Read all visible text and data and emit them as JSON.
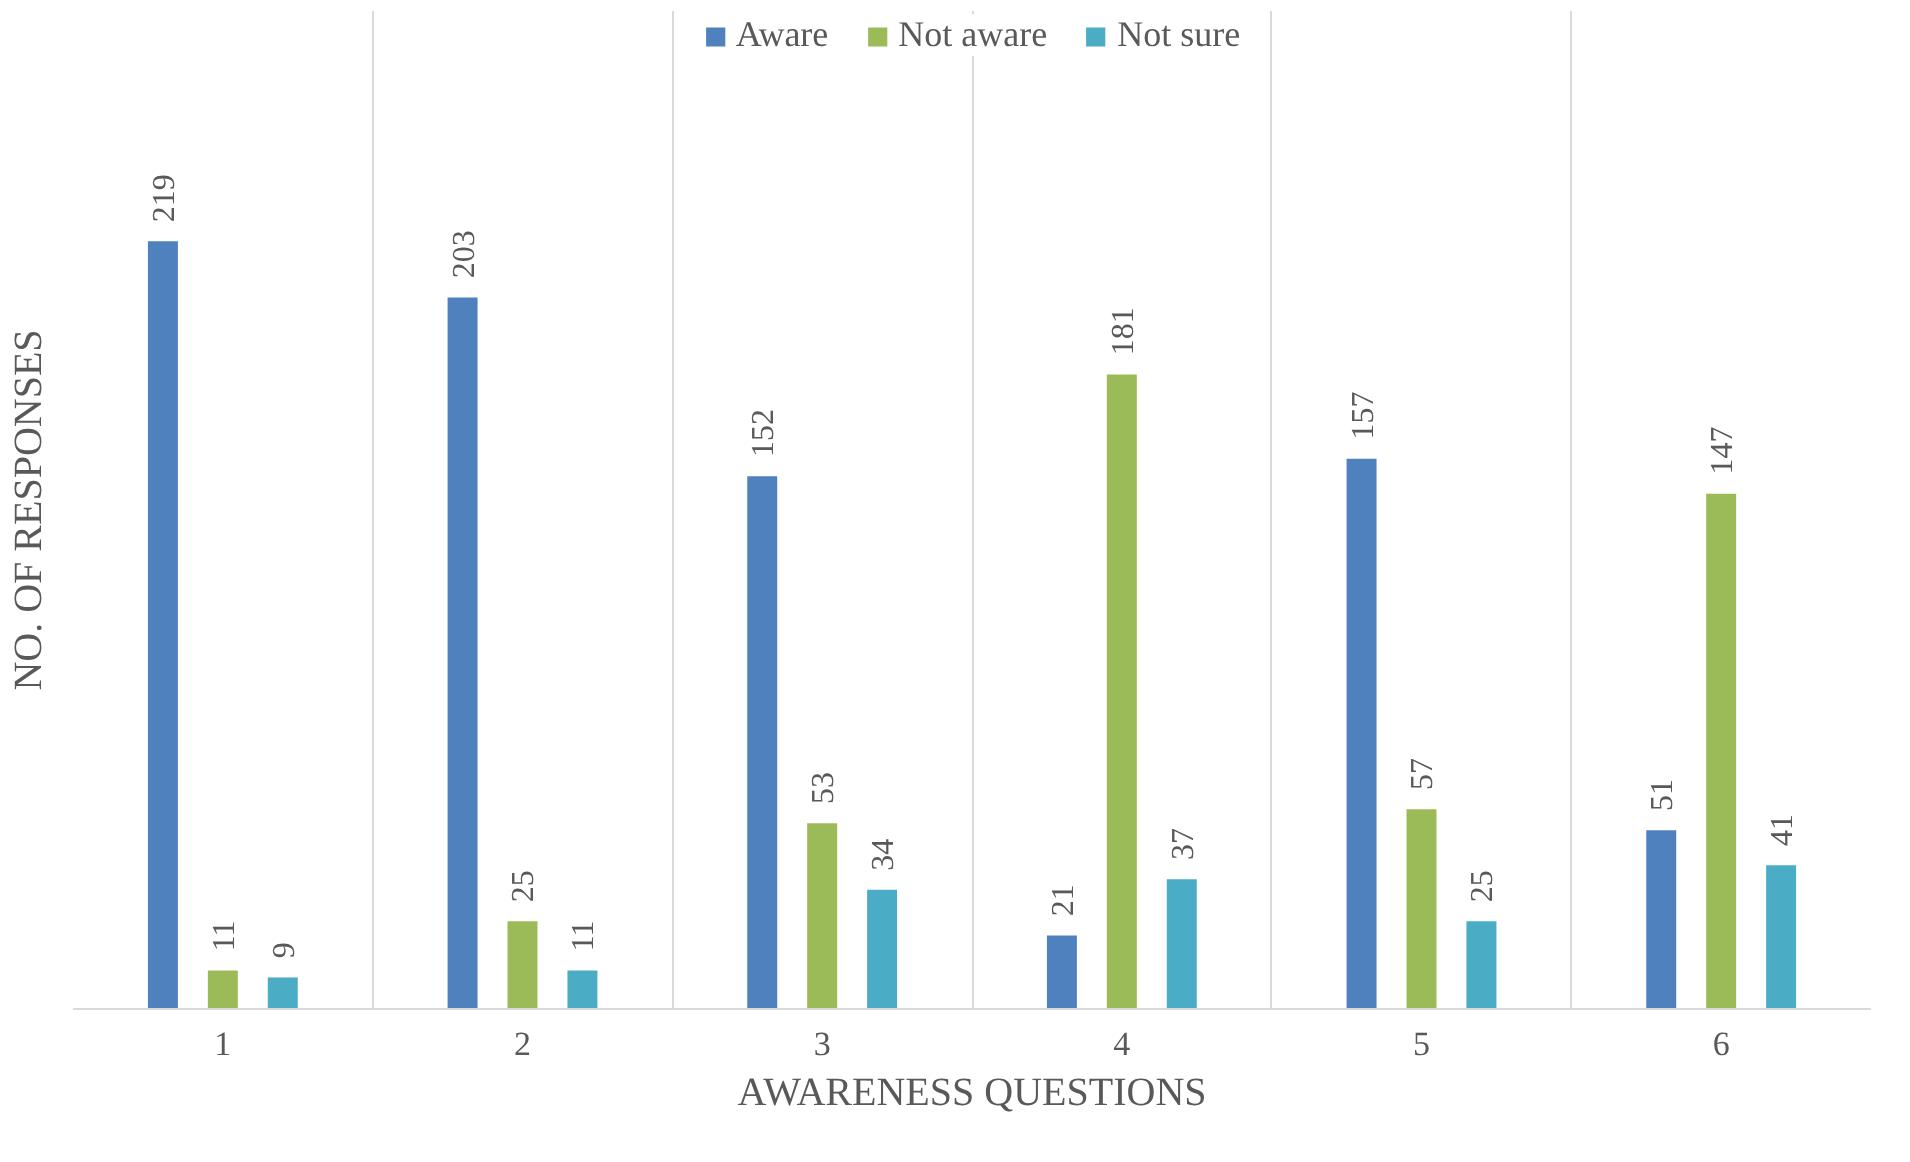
{
  "chart_data": {
    "type": "bar",
    "xlabel": "AWARENESS QUESTIONS",
    "ylabel": "NO. OF RESPONSES",
    "categories": [
      "1",
      "2",
      "3",
      "4",
      "5",
      "6"
    ],
    "series": [
      {
        "name": "Aware",
        "color": "#4e81bd",
        "values": [
          219,
          203,
          152,
          21,
          157,
          51
        ]
      },
      {
        "name": "Not aware",
        "color": "#9bbb59",
        "values": [
          11,
          25,
          53,
          181,
          57,
          147
        ]
      },
      {
        "name": "Not sure",
        "color": "#4bacc6",
        "values": [
          9,
          11,
          34,
          37,
          25,
          41
        ]
      }
    ],
    "tick_labels": "x",
    "data_labels": true,
    "legend": "top",
    "grid": "x"
  }
}
